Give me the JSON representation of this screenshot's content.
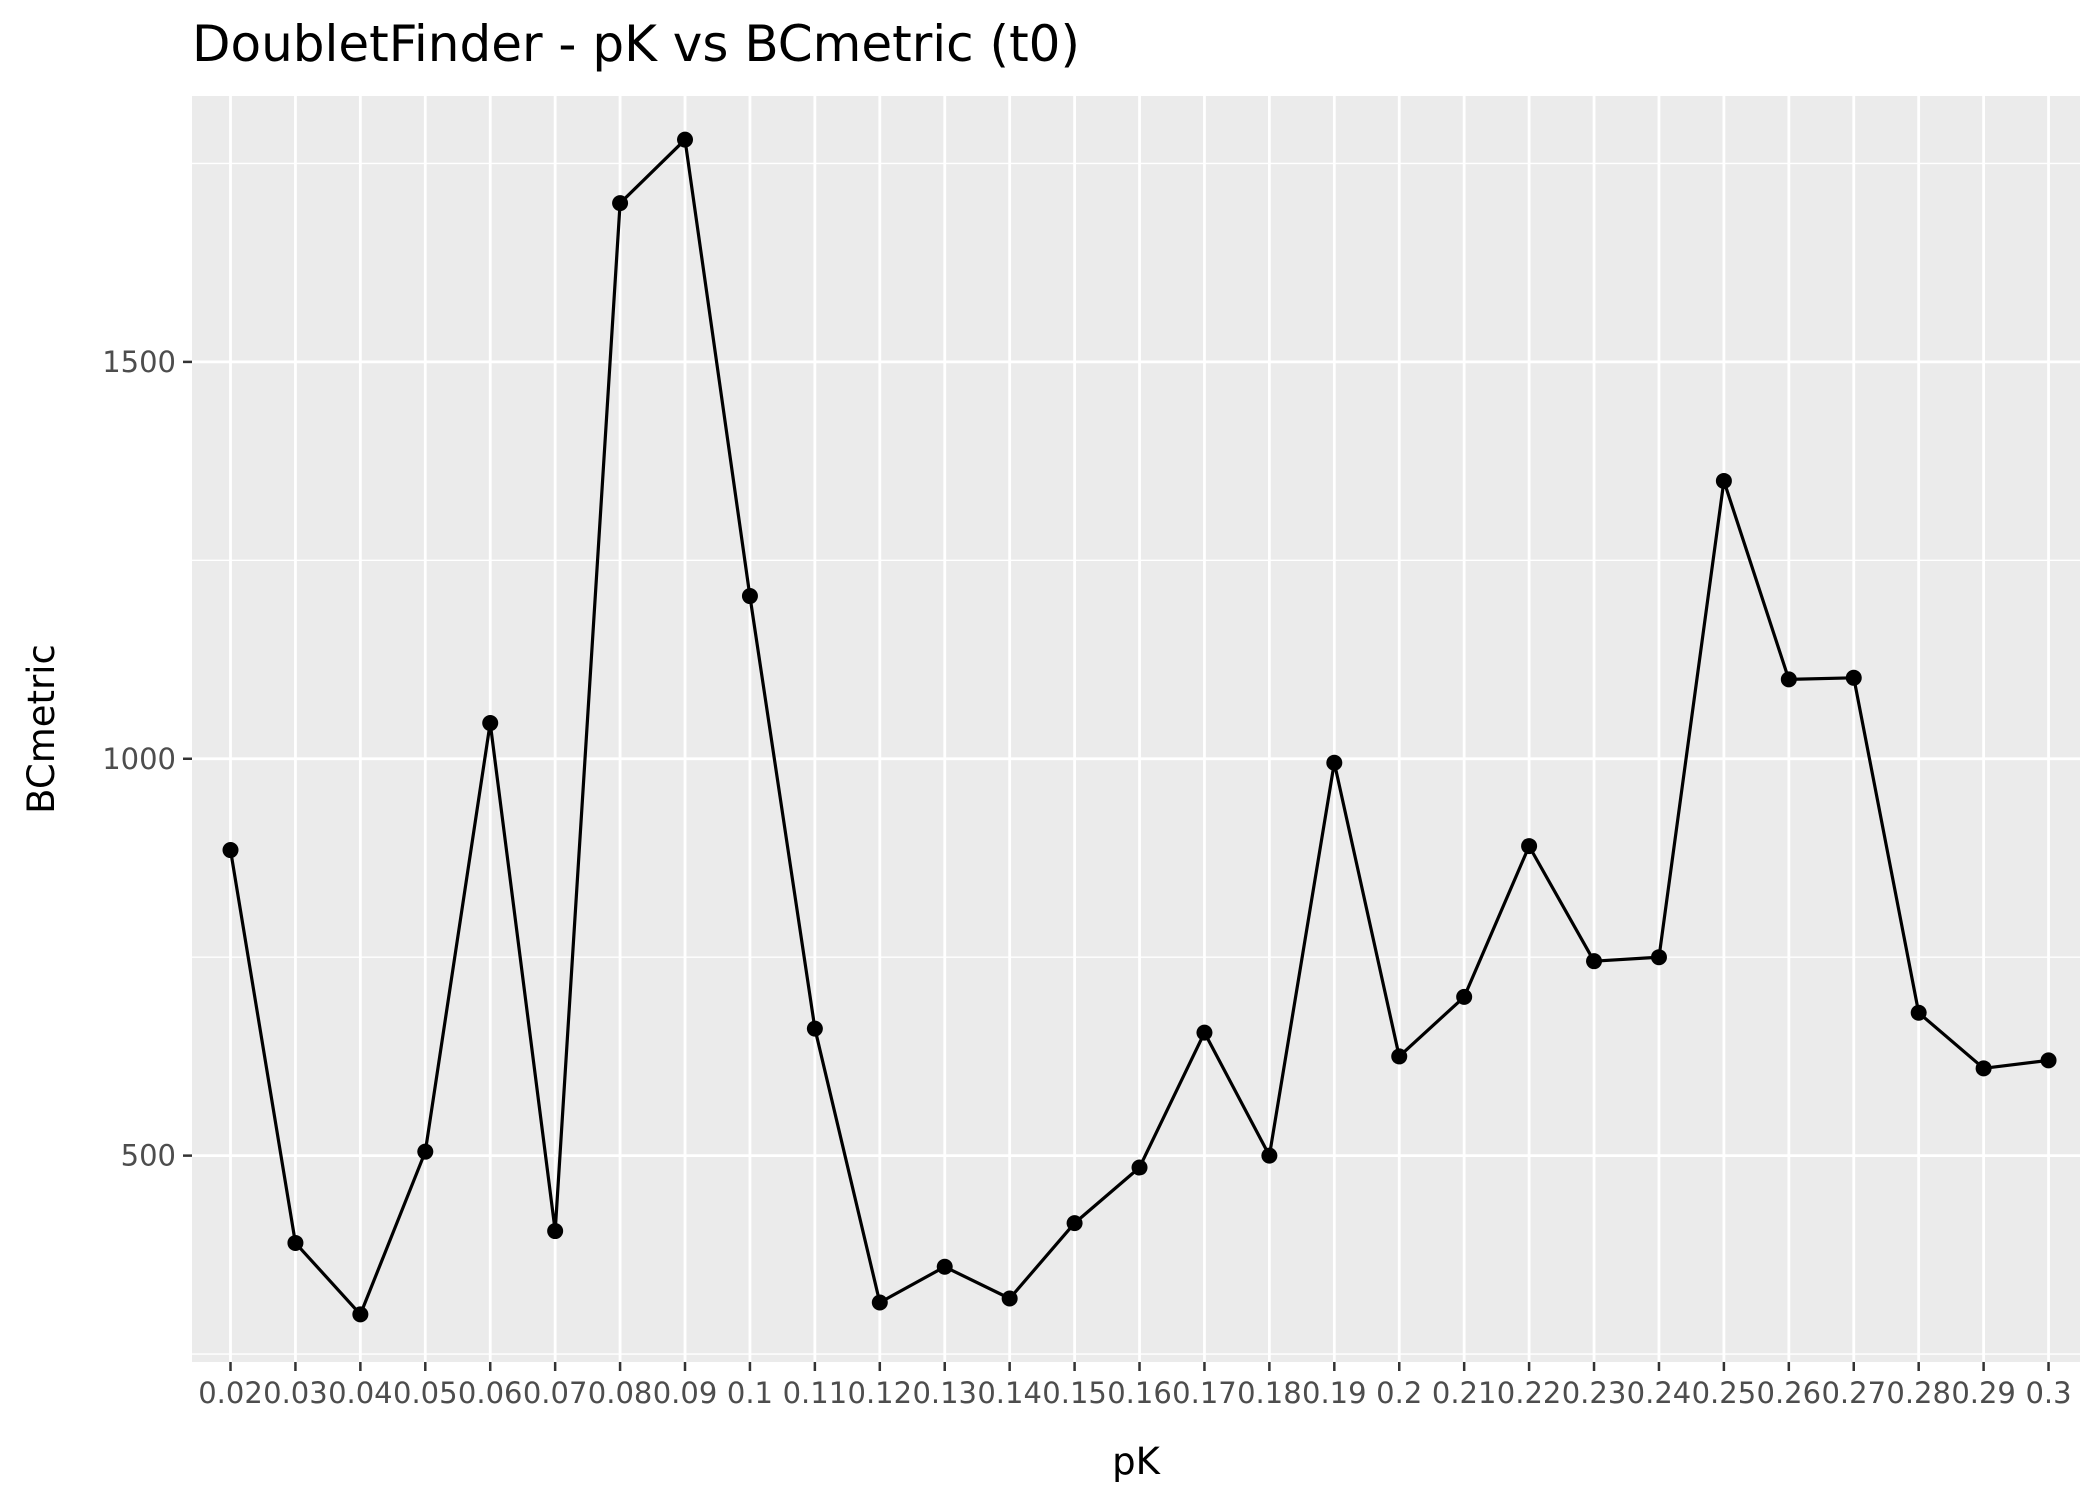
{
  "chart_data": {
    "type": "line",
    "title": "DoubletFinder - pK vs BCmetric (t0)",
    "xlabel": "pK",
    "ylabel": "BCmetric",
    "categories": [
      "0.02",
      "0.03",
      "0.04",
      "0.05",
      "0.06",
      "0.07",
      "0.08",
      "0.09",
      "0.1",
      "0.11",
      "0.12",
      "0.13",
      "0.14",
      "0.15",
      "0.16",
      "0.17",
      "0.18",
      "0.19",
      "0.2",
      "0.21",
      "0.22",
      "0.23",
      "0.24",
      "0.25",
      "0.26",
      "0.27",
      "0.28",
      "0.29",
      "0.3"
    ],
    "values": [
      885,
      390,
      300,
      505,
      1045,
      405,
      1700,
      1780,
      1205,
      660,
      315,
      360,
      320,
      415,
      485,
      655,
      500,
      995,
      625,
      700,
      890,
      745,
      750,
      1350,
      1100,
      1102,
      680,
      610,
      620
    ],
    "ylim": [
      240,
      1835
    ],
    "y_ticks": [
      500,
      1000,
      1500
    ],
    "grid": true,
    "legend": "none",
    "colors": {
      "panel": "#ebebeb",
      "grid": "#ffffff",
      "line": "#000000",
      "point": "#000000"
    }
  }
}
